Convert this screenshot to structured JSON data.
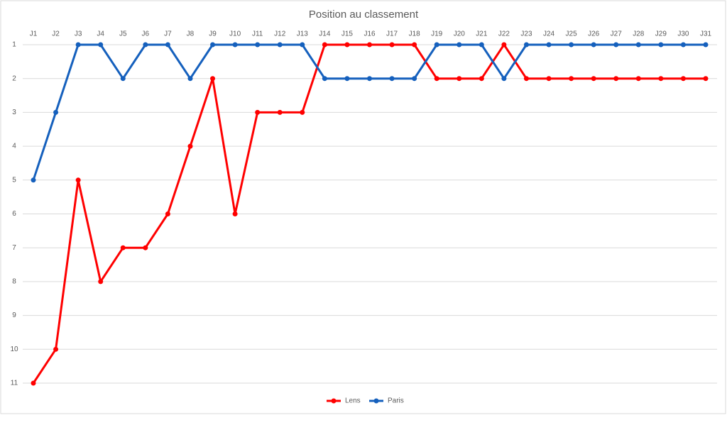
{
  "chart_data": {
    "type": "line",
    "title": "Position au classement",
    "categories": [
      "J1",
      "J2",
      "J3",
      "J4",
      "J5",
      "J6",
      "J7",
      "J8",
      "J9",
      "J10",
      "J11",
      "J12",
      "J13",
      "J14",
      "J15",
      "J16",
      "J17",
      "J18",
      "J19",
      "J20",
      "J21",
      "J22",
      "J23",
      "J24",
      "J25",
      "J26",
      "J27",
      "J28",
      "J29",
      "J30",
      "J31"
    ],
    "series": [
      {
        "name": "Lens",
        "color": "#ff0000",
        "values": [
          11,
          10,
          5,
          8,
          7,
          7,
          6,
          4,
          2,
          6,
          3,
          3,
          3,
          1,
          1,
          1,
          1,
          1,
          2,
          2,
          2,
          1,
          2,
          2,
          2,
          2,
          2,
          2,
          2,
          2,
          2
        ]
      },
      {
        "name": "Paris",
        "color": "#1560bd",
        "values": [
          5,
          3,
          1,
          1,
          2,
          1,
          1,
          2,
          1,
          1,
          1,
          1,
          1,
          2,
          2,
          2,
          2,
          2,
          1,
          1,
          1,
          2,
          1,
          1,
          1,
          1,
          1,
          1,
          1,
          1,
          1
        ]
      }
    ],
    "ylim": [
      1,
      11
    ],
    "yticks": [
      1,
      2,
      3,
      4,
      5,
      6,
      7,
      8,
      9,
      10,
      11
    ],
    "y_reversed": true,
    "grid": true,
    "legend": "bottom"
  }
}
